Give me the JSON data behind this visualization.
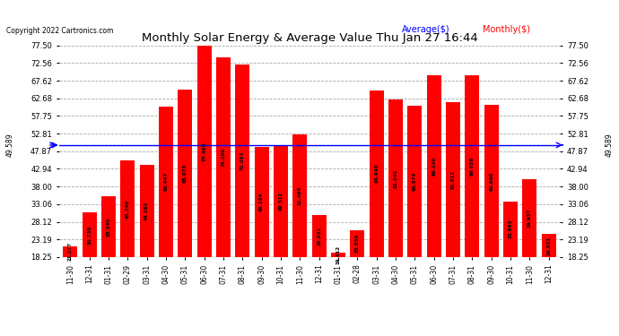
{
  "title": "Monthly Solar Energy & Average Value Thu Jan 27 16:44",
  "copyright": "Copyright 2022 Cartronics.com",
  "categories": [
    "11-30",
    "12-31",
    "01-31",
    "02-29",
    "03-31",
    "04-30",
    "05-31",
    "06-30",
    "07-31",
    "08-31",
    "09-30",
    "10-31",
    "11-30",
    "12-31",
    "01-31",
    "02-28",
    "03-31",
    "04-30",
    "05-31",
    "06-30",
    "07-31",
    "08-31",
    "09-30",
    "10-31",
    "11-30",
    "12-31"
  ],
  "values": [
    21.277,
    30.738,
    35.24,
    45.248,
    44.162,
    60.447,
    65.073,
    77.495,
    74.2,
    72.054,
    49.184,
    49.512,
    52.464,
    29.951,
    19.412,
    25.839,
    64.94,
    62.342,
    60.574,
    69.14,
    61.612,
    69.058,
    60.86,
    33.893,
    39.957,
    24.651
  ],
  "average": 49.589,
  "bar_color": "#ff0000",
  "avg_line_color": "#0000ff",
  "avg_label_color": "#0000ff",
  "monthly_label_color": "#ff0000",
  "background_color": "#ffffff",
  "grid_color": "#aaaaaa",
  "title_color": "#000000",
  "yticks": [
    18.25,
    23.19,
    28.12,
    33.06,
    38.0,
    42.94,
    47.87,
    52.81,
    57.75,
    62.68,
    67.62,
    72.56,
    77.5
  ],
  "ymin": 18.25,
  "ymax": 77.5,
  "avg_label": "49.589",
  "legend_avg": "Average($)",
  "legend_monthly": "Monthly($)"
}
